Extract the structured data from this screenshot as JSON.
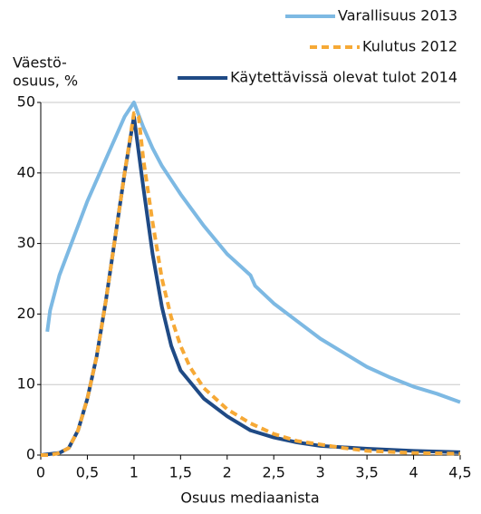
{
  "chart_data": {
    "type": "line",
    "y_label_lines": [
      "Väestö-",
      "osuus, %"
    ],
    "x_label": "Osuus mediaanista",
    "xlim": [
      0,
      4.5
    ],
    "xticks": [
      0,
      {
        "value": 0.5,
        "label": "0,5"
      },
      1,
      {
        "value": 1.5,
        "label": "1,5"
      },
      2,
      {
        "value": 2.5,
        "label": "2,5"
      },
      3,
      {
        "value": 3.5,
        "label": "3,5"
      },
      4,
      {
        "value": 4.5,
        "label": "4,5"
      }
    ],
    "ylim": [
      0,
      50
    ],
    "yticks": [
      0,
      10,
      20,
      30,
      40,
      50
    ],
    "grid": true,
    "legend": "top-right",
    "series": [
      {
        "name": "Varallisuus 2013",
        "color": "#7db9e3",
        "dash": false,
        "x": [
          0.07,
          0.1,
          0.2,
          0.3,
          0.4,
          0.5,
          0.6,
          0.7,
          0.8,
          0.9,
          1.0,
          1.1,
          1.2,
          1.3,
          1.4,
          1.5,
          1.75,
          2.0,
          2.25,
          2.3,
          2.5,
          2.75,
          3.0,
          3.25,
          3.5,
          3.75,
          4.0,
          4.25,
          4.5
        ],
        "values": [
          17.5,
          20.5,
          25.5,
          29,
          32.5,
          36,
          39,
          42,
          45,
          48,
          50,
          46.5,
          43.5,
          41,
          39,
          37,
          32.5,
          28.5,
          25.5,
          24,
          21.5,
          19,
          16.5,
          14.5,
          12.5,
          11,
          9.7,
          8.7,
          7.5
        ]
      },
      {
        "name": "Kulutus 2012",
        "color": "#f6a936",
        "dash": true,
        "x": [
          0,
          0.1,
          0.2,
          0.3,
          0.4,
          0.5,
          0.6,
          0.7,
          0.8,
          0.9,
          1.0,
          1.05,
          1.1,
          1.2,
          1.3,
          1.4,
          1.5,
          1.6,
          1.75,
          2.0,
          2.25,
          2.5,
          2.75,
          3.0,
          3.25,
          3.5,
          4.0,
          4.5
        ],
        "values": [
          0,
          0,
          0.3,
          1,
          3.5,
          8,
          14,
          22,
          31,
          40,
          48.5,
          48,
          42,
          33,
          25,
          19.5,
          15.5,
          12.5,
          9.5,
          6.5,
          4.5,
          3,
          2,
          1.5,
          1,
          0.6,
          0.3,
          0.2
        ]
      },
      {
        "name": "Käytettävissä olevat tulot 2014",
        "color": "#1f4a85",
        "dash": false,
        "x": [
          0,
          0.2,
          0.3,
          0.4,
          0.5,
          0.6,
          0.7,
          0.8,
          0.9,
          1.0,
          1.1,
          1.2,
          1.3,
          1.4,
          1.5,
          1.75,
          2.0,
          2.25,
          2.5,
          2.75,
          3.0,
          3.5,
          4.0,
          4.5
        ],
        "values": [
          0,
          0.3,
          1,
          3.5,
          8,
          14,
          22,
          31,
          40,
          48,
          38,
          28.5,
          21,
          15.5,
          12,
          8,
          5.5,
          3.5,
          2.5,
          1.8,
          1.3,
          0.9,
          0.6,
          0.4
        ]
      }
    ]
  }
}
